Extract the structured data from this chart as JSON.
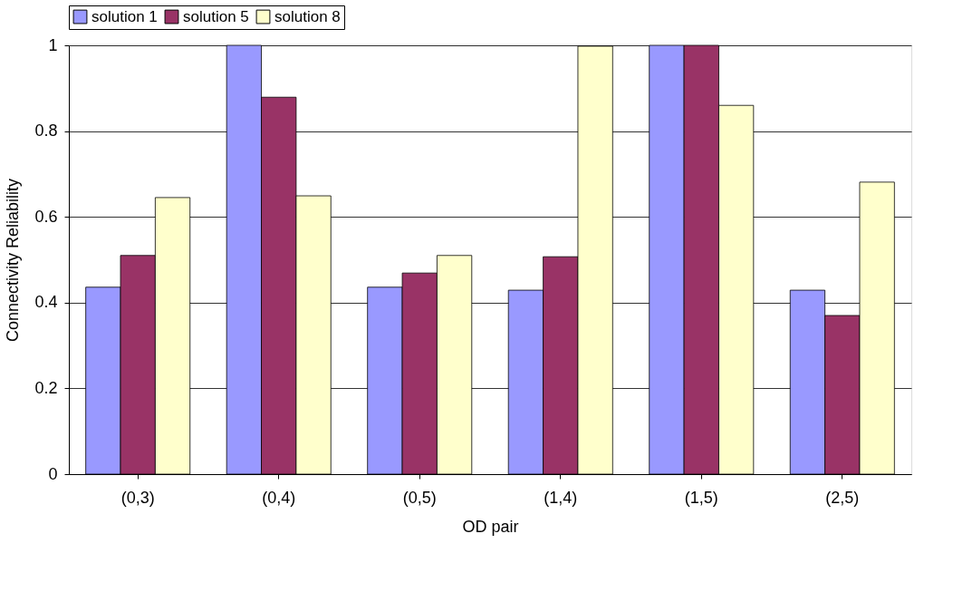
{
  "chart_data": {
    "type": "bar",
    "xlabel": "OD pair",
    "ylabel": "Connectivity Reliability",
    "categories": [
      "(0,3)",
      "(0,4)",
      "(0,5)",
      "(1,4)",
      "(1,5)",
      "(2,5)"
    ],
    "series": [
      {
        "name": "solution 1",
        "color": "#9999ff",
        "values": [
          0.436,
          1.0,
          0.436,
          0.429,
          1.0,
          0.429
        ]
      },
      {
        "name": "solution 5",
        "color": "#993366",
        "values": [
          0.51,
          0.879,
          0.469,
          0.507,
          1.0,
          0.37
        ]
      },
      {
        "name": "solution 8",
        "color": "#ffffcc",
        "values": [
          0.645,
          0.649,
          0.51,
          0.998,
          0.86,
          0.681
        ]
      }
    ],
    "ylim": [
      0,
      1
    ],
    "yticks": [
      0,
      0.2,
      0.4,
      0.6,
      0.8,
      1
    ],
    "grid": "y",
    "legend": "top"
  }
}
